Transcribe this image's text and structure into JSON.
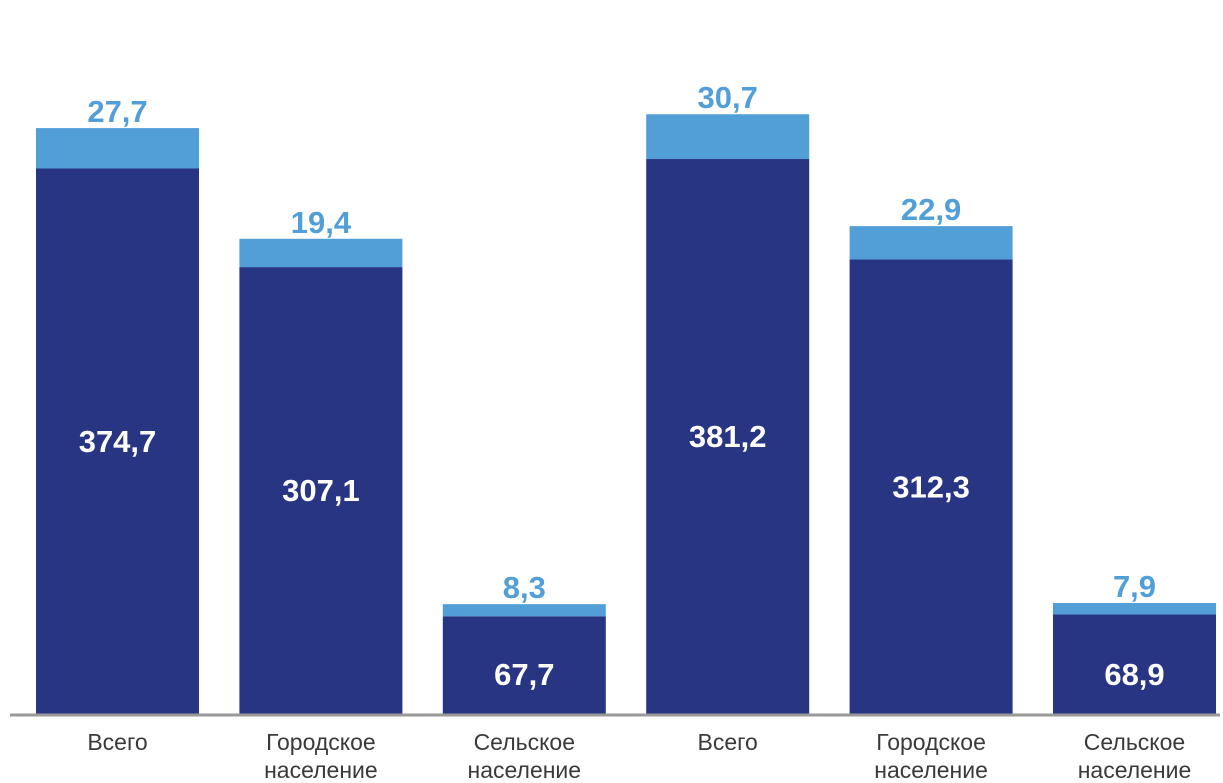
{
  "chart_data": {
    "type": "bar",
    "stacked": true,
    "categories": [
      [
        "Всего"
      ],
      [
        "Городское",
        "население"
      ],
      [
        "Сельское",
        "население"
      ],
      [
        "Всего"
      ],
      [
        "Городское",
        "население"
      ],
      [
        "Сельское",
        "население"
      ]
    ],
    "series": [
      {
        "values": [
          374.7,
          307.1,
          67.7,
          381.2,
          312.3,
          68.9
        ],
        "labels": [
          "374,7",
          "307,1",
          "67,7",
          "381,2",
          "312,3",
          "68,9"
        ]
      },
      {
        "values": [
          27.7,
          19.4,
          8.3,
          30.7,
          22.9,
          7.9
        ],
        "labels": [
          "27,7",
          "19,4",
          "8,3",
          "30,7",
          "22,9",
          "7,9"
        ]
      }
    ],
    "title": "",
    "xlabel": "",
    "ylabel": "",
    "ylim": [
      0,
      430
    ],
    "grid": false,
    "legend": "none"
  },
  "colors": {
    "series_bottom": "#283583",
    "series_top": "#529fd8",
    "inner_label": "#ffffff",
    "axis": "#999999"
  }
}
